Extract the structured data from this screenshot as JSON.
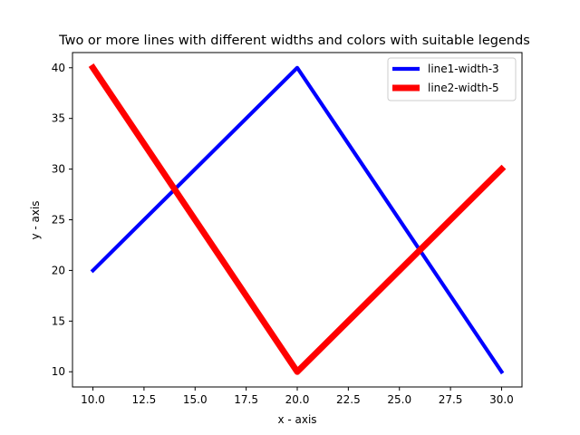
{
  "chart_data": {
    "type": "line",
    "title": "Two or more lines with different widths and colors with suitable legends",
    "xlabel": "x - axis",
    "ylabel": "y - axis",
    "xlim": [
      9.0,
      31.0
    ],
    "ylim": [
      8.5,
      41.5
    ],
    "xticks": [
      10.0,
      12.5,
      15.0,
      17.5,
      20.0,
      22.5,
      25.0,
      27.5,
      30.0
    ],
    "xtick_labels": [
      "10.0",
      "12.5",
      "15.0",
      "17.5",
      "20.0",
      "22.5",
      "25.0",
      "27.5",
      "30.0"
    ],
    "yticks": [
      10,
      15,
      20,
      25,
      30,
      35,
      40
    ],
    "ytick_labels": [
      "10",
      "15",
      "20",
      "25",
      "30",
      "35",
      "40"
    ],
    "grid": false,
    "legend_position": "top-right",
    "series": [
      {
        "name": "line1-width-3",
        "color": "#0000ff",
        "line_width": 3,
        "x": [
          10,
          20,
          30
        ],
        "y": [
          20,
          40,
          10
        ]
      },
      {
        "name": "line2-width-5",
        "color": "#ff0000",
        "line_width": 5,
        "x": [
          10,
          20,
          30
        ],
        "y": [
          40,
          10,
          30
        ]
      }
    ]
  }
}
